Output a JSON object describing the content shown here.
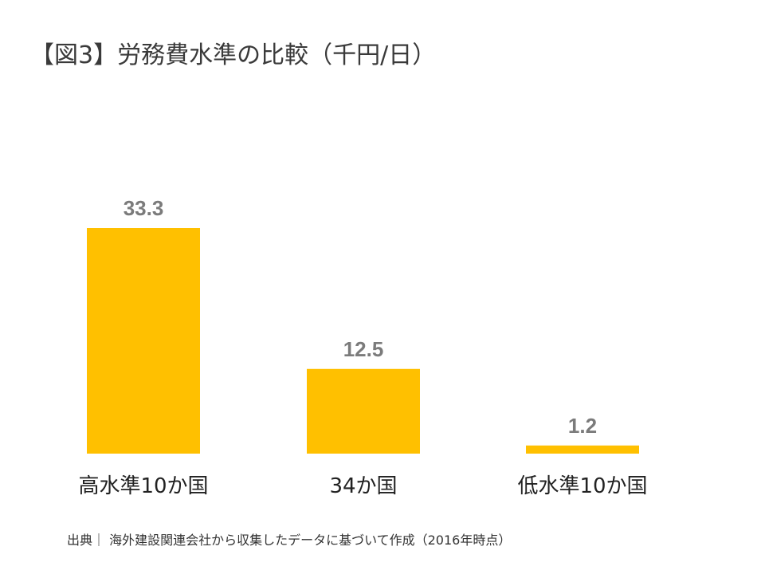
{
  "title": "【図3】労務費水準の比較（千円/日）",
  "source": "出典｜ 海外建設関連会社から収集したデータに基づいて作成（2016年時点）",
  "colors": {
    "bar": "#FFC000",
    "value_label": "#7b7b7b",
    "category_label": "#222222"
  },
  "chart_data": {
    "type": "bar",
    "title": "【図3】労務費水準の比較（千円/日）",
    "categories": [
      "高水準10か国",
      "34か国",
      "低水準10か国"
    ],
    "values": [
      33.3,
      12.5,
      1.2
    ],
    "value_labels": [
      "33.3",
      "12.5",
      "1.2"
    ],
    "xlabel": "",
    "ylabel": "",
    "ylim": [
      0,
      33.3
    ],
    "grid": false,
    "legend": "none"
  }
}
